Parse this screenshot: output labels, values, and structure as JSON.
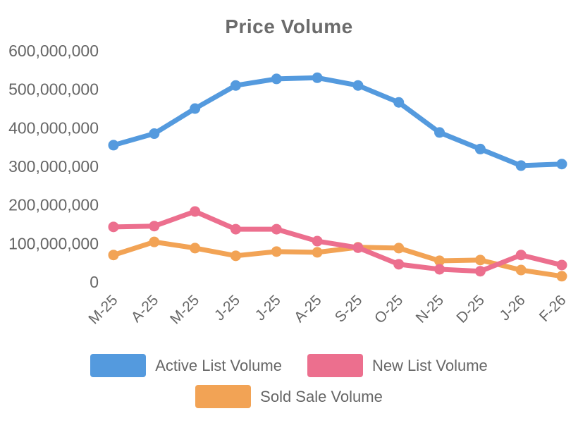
{
  "chart_data": {
    "type": "line",
    "title": "Price Volume",
    "categories": [
      "M-25",
      "A-25",
      "M-25",
      "J-25",
      "J-25",
      "A-25",
      "S-25",
      "O-25",
      "N-25",
      "D-25",
      "J-26",
      "F-26"
    ],
    "series": [
      {
        "name": "Active List Volume",
        "color": "#549ADE",
        "values": [
          355000000,
          385000000,
          450000000,
          510000000,
          527000000,
          530000000,
          510000000,
          466000000,
          388000000,
          345000000,
          302000000,
          306000000
        ]
      },
      {
        "name": "New List Volume",
        "color": "#EC6F8E",
        "values": [
          143000000,
          145000000,
          183000000,
          137000000,
          137000000,
          106000000,
          89000000,
          46000000,
          33000000,
          28000000,
          70000000,
          44000000
        ]
      },
      {
        "name": "Sold Sale Volume",
        "color": "#F2A355",
        "values": [
          70000000,
          104000000,
          88000000,
          68000000,
          79000000,
          77000000,
          90000000,
          88000000,
          55000000,
          57000000,
          31000000,
          15000000
        ]
      }
    ],
    "ylim": [
      0,
      600000000
    ],
    "ytick_labels": [
      "0",
      "100,000,000",
      "200,000,000",
      "300,000,000",
      "400,000,000",
      "500,000,000",
      "600,000,000"
    ],
    "grid": false,
    "legend_position": "bottom",
    "text_color": "#666666"
  }
}
